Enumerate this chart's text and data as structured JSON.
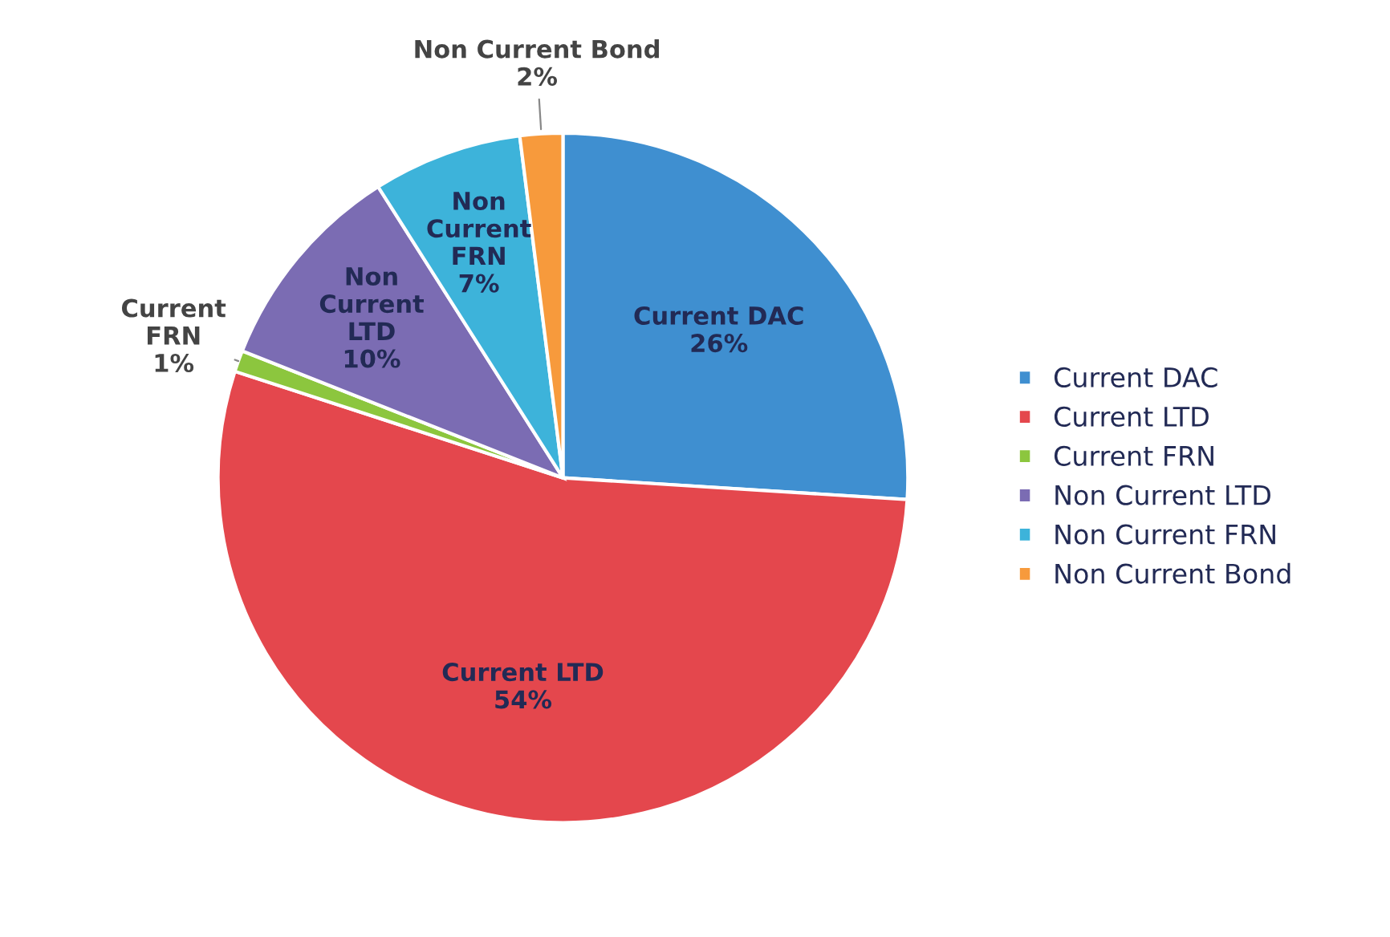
{
  "chart_data": {
    "type": "pie",
    "categories": [
      "Current DAC",
      "Current LTD",
      "Current FRN",
      "Non Current LTD",
      "Non Current FRN",
      "Non Current Bond"
    ],
    "values": [
      26,
      54,
      1,
      10,
      7,
      2
    ],
    "value_labels": [
      "26%",
      "54%",
      "1%",
      "10%",
      "7%",
      "2%"
    ],
    "colors": [
      "#3f8fd0",
      "#e4474d",
      "#8cc63e",
      "#7b6cb3",
      "#3db3da",
      "#f79a3c"
    ],
    "legend": "right"
  }
}
